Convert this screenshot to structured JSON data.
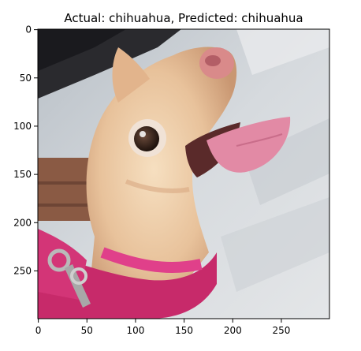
{
  "figure": {
    "title": "Actual: chihuahua, Predicted: chihuahua",
    "image_caption": "chihuahua photo",
    "x_ticks": [
      "0",
      "50",
      "100",
      "150",
      "200",
      "250"
    ],
    "y_ticks": [
      "0",
      "50",
      "100",
      "150",
      "200",
      "250"
    ],
    "x_range": [
      0,
      299
    ],
    "y_range": [
      0,
      299
    ],
    "colors": {
      "axes": "#000000",
      "background": "#ffffff"
    }
  }
}
